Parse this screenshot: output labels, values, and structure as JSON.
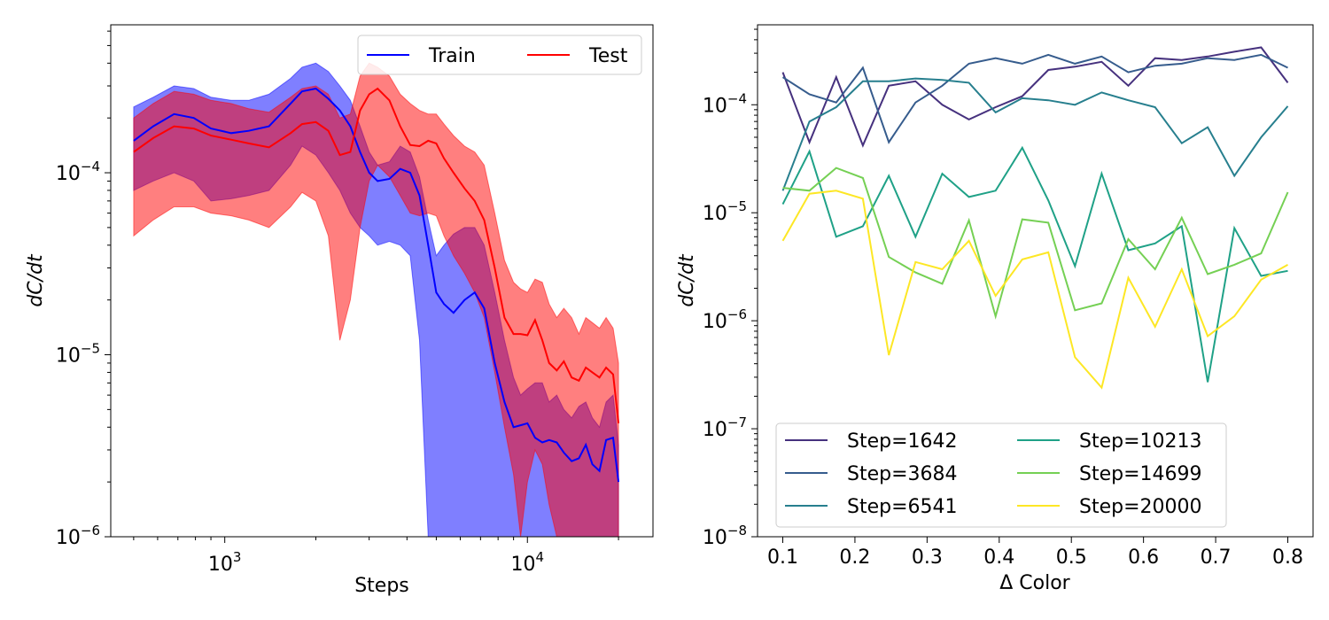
{
  "chart_data": [
    {
      "type": "line",
      "xlabel": "Steps",
      "ylabel": "dC/dt",
      "xscale": "log",
      "yscale": "log",
      "xlim": [
        420,
        26000
      ],
      "ylim": [
        1e-06,
        0.00065
      ],
      "grid": false,
      "legend": {
        "placement": "top-right",
        "columns": 2
      },
      "x_ticks": [
        {
          "value": 1000,
          "base": "10",
          "exp": "3"
        },
        {
          "value": 10000,
          "base": "10",
          "exp": "4"
        }
      ],
      "y_ticks": [
        {
          "value": 0.0001,
          "base": "10",
          "exp": "−4"
        },
        {
          "value": 1e-05,
          "base": "10",
          "exp": "−5"
        },
        {
          "value": 1e-06,
          "base": "10",
          "exp": "−6"
        }
      ],
      "series": [
        {
          "name": "Train",
          "color": "#0000ff",
          "x": [
            500,
            580,
            680,
            790,
            900,
            1050,
            1200,
            1400,
            1650,
            1800,
            2000,
            2200,
            2400,
            2600,
            2800,
            3000,
            3200,
            3500,
            3800,
            4100,
            4400,
            4700,
            5000,
            5300,
            5700,
            6200,
            6700,
            7200,
            7800,
            8400,
            9000,
            9500,
            10000,
            10600,
            11200,
            11800,
            12500,
            13200,
            14000,
            14800,
            15600,
            16400,
            17300,
            18200,
            19200,
            20000
          ],
          "y": [
            0.00015,
            0.00018,
            0.00021,
            0.0002,
            0.000175,
            0.000165,
            0.00017,
            0.00018,
            0.00024,
            0.00028,
            0.00029,
            0.000255,
            0.00022,
            0.00018,
            0.00013,
            0.0001,
            9e-05,
            9.25e-05,
            0.000105,
            0.0001,
            7.5e-05,
            4e-05,
            2.2e-05,
            1.9e-05,
            1.7e-05,
            2e-05,
            2.2e-05,
            1.8e-05,
            9e-06,
            5.5e-06,
            4e-06,
            4.1e-06,
            4.2e-06,
            3.5e-06,
            3.3e-06,
            3.4e-06,
            3.3e-06,
            2.9e-06,
            2.6e-06,
            2.7e-06,
            3.2e-06,
            2.5e-06,
            2.3e-06,
            3.4e-06,
            3.5e-06,
            2e-06
          ],
          "upper": [
            0.00023,
            0.00026,
            0.0003,
            0.00029,
            0.00026,
            0.00025,
            0.00025,
            0.00027,
            0.00033,
            0.00038,
            0.0004,
            0.00036,
            0.0003,
            0.00025,
            0.00018,
            0.00013,
            0.00011,
            0.000115,
            0.00014,
            0.00013,
            9.5e-05,
            5.5e-05,
            3.5e-05,
            4e-05,
            4.6e-05,
            5e-05,
            5e-05,
            4e-05,
            2.2e-05,
            1.2e-05,
            7.5e-06,
            6e-06,
            6.5e-06,
            7e-06,
            7e-06,
            5.5e-06,
            6e-06,
            5e-06,
            4.5e-06,
            5.2e-06,
            5.5e-06,
            4.5e-06,
            4e-06,
            5.5e-06,
            6e-06,
            3.2e-06
          ],
          "lower": [
            8e-05,
            9e-05,
            0.0001,
            9e-05,
            7e-05,
            7.2e-05,
            7.5e-05,
            8e-05,
            0.00011,
            0.00014,
            0.000125,
            0.0001,
            8e-05,
            6e-05,
            5e-05,
            4.5e-05,
            4e-05,
            4.2e-05,
            4e-05,
            3.5e-05,
            1.2e-05,
            1e-06,
            1e-06,
            1e-06,
            1e-06,
            1e-06,
            1e-06,
            1e-06,
            1e-06,
            1e-06,
            1e-06,
            1e-06,
            1e-06,
            1e-06,
            1e-06,
            1e-06,
            1e-06,
            1e-06,
            1e-06,
            1e-06,
            1e-06,
            1e-06,
            1e-06,
            1e-06,
            1e-06,
            1e-06
          ]
        },
        {
          "name": "Test",
          "color": "#ff0000",
          "x": [
            500,
            580,
            680,
            790,
            900,
            1050,
            1200,
            1400,
            1650,
            1800,
            2000,
            2200,
            2400,
            2600,
            2800,
            3000,
            3200,
            3500,
            3800,
            4100,
            4400,
            4700,
            5000,
            5300,
            5700,
            6200,
            6700,
            7200,
            7800,
            8400,
            9000,
            9500,
            10000,
            10600,
            11200,
            11800,
            12500,
            13200,
            14000,
            14800,
            15600,
            16400,
            17300,
            18200,
            19200,
            20000
          ],
          "y": [
            0.00013,
            0.000155,
            0.00018,
            0.000175,
            0.00016,
            0.000152,
            0.000145,
            0.000138,
            0.000165,
            0.000185,
            0.00019,
            0.00017,
            0.000125,
            0.00013,
            0.00022,
            0.00027,
            0.00029,
            0.00025,
            0.00018,
            0.000142,
            0.00014,
            0.00015,
            0.000145,
            0.00012,
            0.0001,
            8.2e-05,
            7e-05,
            5.5e-05,
            3e-05,
            1.6e-05,
            1.3e-05,
            1.3e-05,
            1.28e-05,
            1.55e-05,
            1.2e-05,
            9e-06,
            8.2e-06,
            9.2e-06,
            7.5e-06,
            7.2e-06,
            8.5e-06,
            8e-06,
            7.5e-06,
            8.5e-06,
            7.8e-06,
            4.2e-06
          ],
          "upper": [
            0.0002,
            0.00024,
            0.00028,
            0.00027,
            0.00025,
            0.00024,
            0.000225,
            0.000215,
            0.00026,
            0.00029,
            0.0003,
            0.00027,
            0.0002,
            0.00021,
            0.00034,
            0.0004,
            0.00038,
            0.00034,
            0.00027,
            0.00024,
            0.00022,
            0.00021,
            0.00021,
            0.000185,
            0.00016,
            0.00014,
            0.00013,
            0.00011,
            6e-05,
            3.3e-05,
            2.5e-05,
            2.3e-05,
            2.2e-05,
            2.6e-05,
            2.5e-05,
            1.9e-05,
            1.6e-05,
            1.8e-05,
            1.6e-05,
            1.3e-05,
            1.6e-05,
            1.5e-05,
            1.4e-05,
            1.6e-05,
            1.4e-05,
            9e-06
          ],
          "lower": [
            4.5e-05,
            5.5e-05,
            6.5e-05,
            6.5e-05,
            6e-05,
            5.8e-05,
            5.5e-05,
            5e-05,
            6.5e-05,
            7.8e-05,
            7e-05,
            4.5e-05,
            1.2e-05,
            2e-05,
            5e-05,
            9e-05,
            0.00011,
            9.5e-05,
            7.5e-05,
            6e-05,
            5.8e-05,
            6e-05,
            5.8e-05,
            4.5e-05,
            3.5e-05,
            2.8e-05,
            2.2e-05,
            1.6e-05,
            8e-06,
            4e-06,
            2.2e-06,
            1e-06,
            2e-06,
            3e-06,
            2.5e-06,
            1.5e-06,
            1e-06,
            1e-06,
            1e-06,
            1e-06,
            1e-06,
            1e-06,
            1e-06,
            1e-06,
            1e-06,
            1e-06
          ]
        }
      ]
    },
    {
      "type": "line",
      "xlabel": "Δ Color",
      "ylabel": "dC/dt",
      "xscale": "linear",
      "yscale": "log",
      "xlim": [
        0.065,
        0.835
      ],
      "ylim": [
        1e-08,
        0.00055
      ],
      "grid": false,
      "legend": {
        "placement": "lower-left",
        "columns": 2
      },
      "x_ticks": [
        {
          "value": 0.1,
          "label": "0.1"
        },
        {
          "value": 0.2,
          "label": "0.2"
        },
        {
          "value": 0.3,
          "label": "0.3"
        },
        {
          "value": 0.4,
          "label": "0.4"
        },
        {
          "value": 0.5,
          "label": "0.5"
        },
        {
          "value": 0.6,
          "label": "0.6"
        },
        {
          "value": 0.7,
          "label": "0.7"
        },
        {
          "value": 0.8,
          "label": "0.8"
        }
      ],
      "y_ticks": [
        {
          "value": 0.0001,
          "base": "10",
          "exp": "−4"
        },
        {
          "value": 1e-05,
          "base": "10",
          "exp": "−5"
        },
        {
          "value": 1e-06,
          "base": "10",
          "exp": "−6"
        },
        {
          "value": 1e-07,
          "base": "10",
          "exp": "−7"
        },
        {
          "value": 1e-08,
          "base": "10",
          "exp": "−8"
        }
      ],
      "x": [
        0.1,
        0.137,
        0.174,
        0.211,
        0.247,
        0.284,
        0.321,
        0.358,
        0.395,
        0.432,
        0.468,
        0.505,
        0.542,
        0.579,
        0.616,
        0.653,
        0.689,
        0.726,
        0.763,
        0.8
      ],
      "series": [
        {
          "name": "Step=1642",
          "color": "#46317e",
          "values": [
            0.0002,
            4.5e-05,
            0.00018,
            4.2e-05,
            0.00015,
            0.000165,
            0.0001,
            7.3e-05,
            9.5e-05,
            0.00012,
            0.00021,
            0.000225,
            0.00025,
            0.00015,
            0.00027,
            0.00026,
            0.00028,
            0.00031,
            0.00034,
            0.00016
          ]
        },
        {
          "name": "Step=3684",
          "color": "#365c8d",
          "values": [
            0.00018,
            0.000125,
            0.000105,
            0.00022,
            4.5e-05,
            0.000105,
            0.00015,
            0.00024,
            0.00027,
            0.00024,
            0.00029,
            0.00024,
            0.00028,
            0.0002,
            0.00023,
            0.00024,
            0.00027,
            0.00026,
            0.00029,
            0.00022
          ]
        },
        {
          "name": "Step=6541",
          "color": "#277f8e",
          "values": [
            1.6e-05,
            7e-05,
            9.5e-05,
            0.000165,
            0.000165,
            0.000175,
            0.00017,
            0.00016,
            8.5e-05,
            0.000115,
            0.00011,
            0.0001,
            0.00013,
            0.00011,
            9.5e-05,
            4.4e-05,
            6.2e-05,
            2.2e-05,
            5e-05,
            9.7e-05
          ]
        },
        {
          "name": "Step=10213",
          "color": "#1fa187",
          "values": [
            1.2e-05,
            3.7e-05,
            6e-06,
            7.5e-06,
            2.2e-05,
            6e-06,
            2.3e-05,
            1.4e-05,
            1.6e-05,
            4e-05,
            1.3e-05,
            3.2e-06,
            2.3e-05,
            4.5e-06,
            5.2e-06,
            7.5e-06,
            2.7e-07,
            7.2e-06,
            2.6e-06,
            2.9e-06
          ]
        },
        {
          "name": "Step=14699",
          "color": "#75d054",
          "values": [
            1.7e-05,
            1.6e-05,
            2.6e-05,
            2.1e-05,
            3.9e-06,
            2.8e-06,
            2.2e-06,
            8.5e-06,
            1.1e-06,
            8.7e-06,
            8.1e-06,
            1.25e-06,
            1.45e-06,
            5.7e-06,
            3e-06,
            9e-06,
            2.7e-06,
            3.3e-06,
            4.2e-06,
            1.55e-05
          ]
        },
        {
          "name": "Step=20000",
          "color": "#fde725",
          "values": [
            5.5e-06,
            1.5e-05,
            1.6e-05,
            1.35e-05,
            4.8e-07,
            3.5e-06,
            3e-06,
            5.5e-06,
            1.7e-06,
            3.7e-06,
            4.3e-06,
            4.6e-07,
            2.4e-07,
            2.5e-06,
            8.8e-07,
            3e-06,
            7.2e-07,
            1.1e-06,
            2.4e-06,
            3.3e-06
          ]
        }
      ]
    }
  ]
}
